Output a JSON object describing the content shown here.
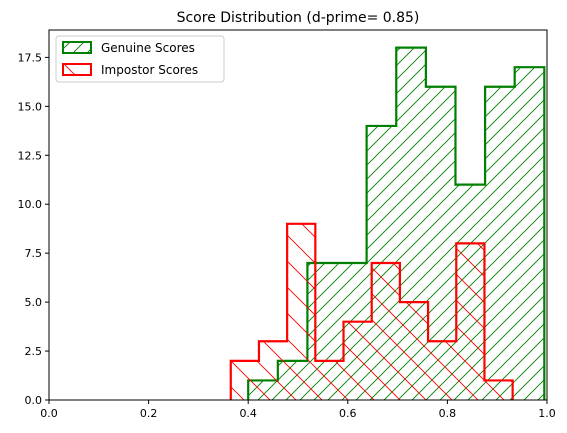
{
  "chart_data": {
    "type": "histogram",
    "title": "Score Distribution (d-prime= 0.85)",
    "xlabel": "",
    "ylabel": "",
    "xlim": [
      0,
      1
    ],
    "ylim": [
      0,
      18.9
    ],
    "x_ticks": [
      0.0,
      0.2,
      0.4,
      0.6,
      0.8,
      1.0
    ],
    "x_tick_labels": [
      "0.0",
      "0.2",
      "0.4",
      "0.6",
      "0.8",
      "1.0"
    ],
    "y_ticks": [
      0,
      2.5,
      5,
      7.5,
      10,
      12.5,
      15,
      17.5
    ],
    "y_tick_labels": [
      "0.0",
      "2.5",
      "5.0",
      "7.5",
      "10.0",
      "12.5",
      "15.0",
      "17.5"
    ],
    "grid": false,
    "legend_position": "top-left",
    "series": [
      {
        "name": "Genuine Scores",
        "color": "#008000",
        "hatch": "forward-diagonal",
        "bin_edges": [
          0.4,
          0.4595,
          0.5189,
          0.5784,
          0.6378,
          0.6973,
          0.7568,
          0.8162,
          0.8757,
          0.9351,
          0.9946
        ],
        "counts": [
          1,
          2,
          7,
          7,
          14,
          18,
          16,
          11,
          16,
          17
        ]
      },
      {
        "name": "Impostor Scores",
        "color": "#ff0000",
        "hatch": "back-diagonal",
        "bin_edges": [
          0.365,
          0.4216,
          0.4782,
          0.5348,
          0.5914,
          0.648,
          0.7046,
          0.7612,
          0.8178,
          0.8744,
          0.931
        ],
        "counts": [
          2,
          3,
          9,
          2,
          4,
          7,
          5,
          3,
          8,
          1
        ]
      }
    ]
  }
}
